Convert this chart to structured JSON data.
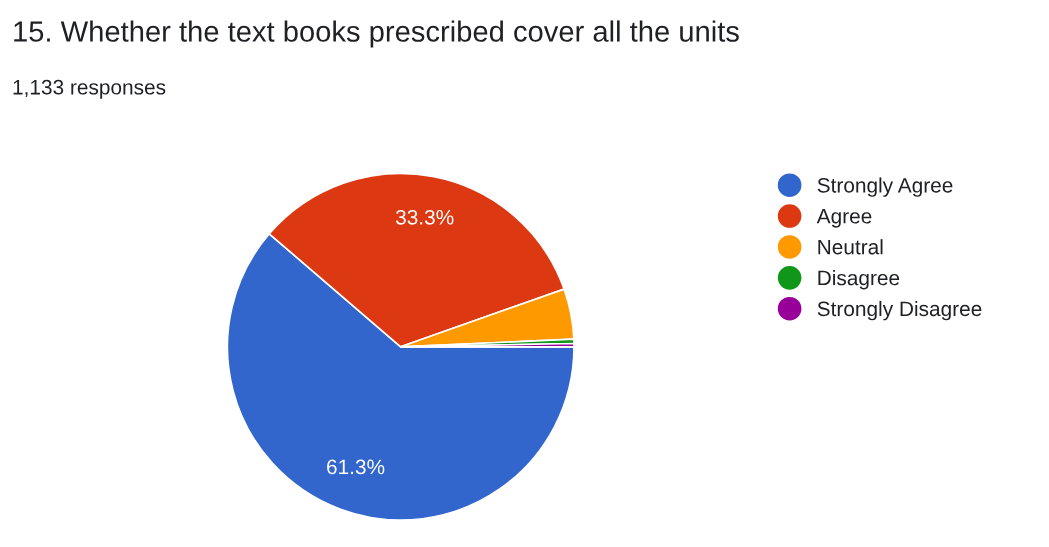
{
  "chart_data": {
    "type": "pie",
    "title": "15. Whether the text books prescribed cover all the units",
    "subtitle": "1,133 responses",
    "categories": [
      "Strongly Agree",
      "Agree",
      "Neutral",
      "Disagree",
      "Strongly Disagree"
    ],
    "values": [
      61.3,
      33.3,
      4.7,
      0.4,
      0.3
    ],
    "value_labels": [
      "61.3%",
      "33.3%",
      null,
      null,
      null
    ],
    "colors": [
      "#3366cc",
      "#dc3912",
      "#ff9900",
      "#109618",
      "#990099"
    ],
    "legend": "right"
  }
}
